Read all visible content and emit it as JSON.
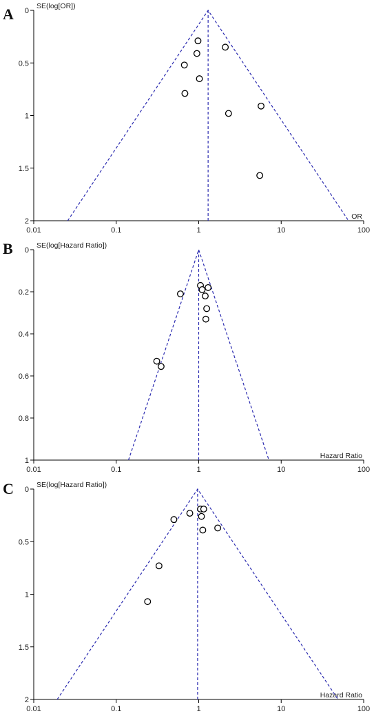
{
  "chart_data": [
    {
      "type": "scatter",
      "panel_label": "A",
      "ylabel": "SE(log[OR])",
      "xlabel": "OR",
      "xscale": "log",
      "xlim": [
        0.01,
        100
      ],
      "ylim": [
        0,
        2
      ],
      "y_reversed": true,
      "x_ticks": [
        "0.01",
        "0.1",
        "1",
        "10",
        "100"
      ],
      "y_ticks": [
        "0",
        "0.5",
        "1",
        "1.5",
        "2"
      ],
      "pooled_estimate": 1.3,
      "points": [
        {
          "x": 0.98,
          "y": 0.29
        },
        {
          "x": 2.1,
          "y": 0.35
        },
        {
          "x": 0.95,
          "y": 0.41
        },
        {
          "x": 0.67,
          "y": 0.52
        },
        {
          "x": 1.02,
          "y": 0.65
        },
        {
          "x": 0.68,
          "y": 0.79
        },
        {
          "x": 5.7,
          "y": 0.91
        },
        {
          "x": 2.3,
          "y": 0.98
        },
        {
          "x": 5.5,
          "y": 1.57
        }
      ]
    },
    {
      "type": "scatter",
      "panel_label": "B",
      "ylabel": "SE(log[Hazard Ratio])",
      "xlabel": "Hazard Ratio",
      "xscale": "log",
      "xlim": [
        0.01,
        100
      ],
      "ylim": [
        0,
        1
      ],
      "y_reversed": true,
      "x_ticks": [
        "0.01",
        "0.1",
        "1",
        "10",
        "100"
      ],
      "y_ticks": [
        "0",
        "0.2",
        "0.4",
        "0.6",
        "0.8",
        "1"
      ],
      "pooled_estimate": 1.0,
      "points": [
        {
          "x": 1.05,
          "y": 0.17
        },
        {
          "x": 1.1,
          "y": 0.19
        },
        {
          "x": 1.3,
          "y": 0.18
        },
        {
          "x": 1.2,
          "y": 0.22
        },
        {
          "x": 0.6,
          "y": 0.21
        },
        {
          "x": 1.25,
          "y": 0.28
        },
        {
          "x": 1.22,
          "y": 0.33
        },
        {
          "x": 0.31,
          "y": 0.53
        },
        {
          "x": 0.35,
          "y": 0.555
        }
      ]
    },
    {
      "type": "scatter",
      "panel_label": "C",
      "ylabel": "SE(log[Hazard Ratio])",
      "xlabel": "Hazard Ratio",
      "xscale": "log",
      "xlim": [
        0.01,
        100
      ],
      "ylim": [
        0,
        2
      ],
      "y_reversed": true,
      "x_ticks": [
        "0.01",
        "0.1",
        "1",
        "10",
        "100"
      ],
      "y_ticks": [
        "0",
        "0.5",
        "1",
        "1.5",
        "2"
      ],
      "pooled_estimate": 0.97,
      "points": [
        {
          "x": 1.05,
          "y": 0.19
        },
        {
          "x": 1.15,
          "y": 0.19
        },
        {
          "x": 0.78,
          "y": 0.23
        },
        {
          "x": 1.08,
          "y": 0.26
        },
        {
          "x": 0.5,
          "y": 0.29
        },
        {
          "x": 1.7,
          "y": 0.37
        },
        {
          "x": 1.12,
          "y": 0.39
        },
        {
          "x": 0.33,
          "y": 0.73
        },
        {
          "x": 0.24,
          "y": 1.07
        }
      ]
    }
  ],
  "colors": {
    "funnel": "#2a2ab0",
    "axis": "#000000",
    "point_stroke": "#000000",
    "point_fill": "#ffffff"
  }
}
